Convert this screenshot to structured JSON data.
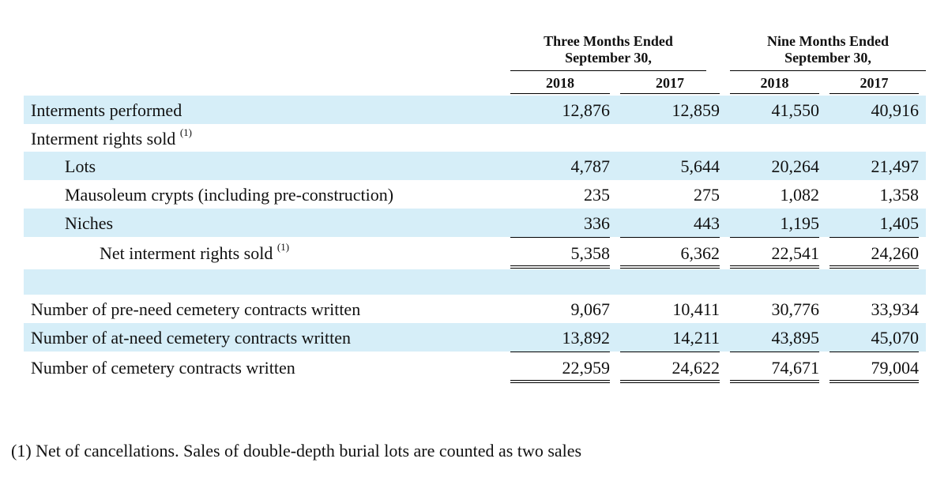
{
  "header": {
    "three_months": "Three Months Ended",
    "three_months_date": "September 30,",
    "nine_months": "Nine Months Ended",
    "nine_months_date": "September 30,",
    "years": [
      "2018",
      "2017",
      "2018",
      "2017"
    ]
  },
  "rows": [
    {
      "label": "Interments performed",
      "values": [
        "12,876",
        "12,859",
        "41,550",
        "40,916"
      ]
    },
    {
      "label": "Interment rights sold",
      "sup": "(1)",
      "values": [
        "",
        "",
        "",
        ""
      ]
    },
    {
      "label": "Lots",
      "values": [
        "4,787",
        "5,644",
        "20,264",
        "21,497"
      ]
    },
    {
      "label": "Mausoleum crypts (including pre-construction)",
      "values": [
        "235",
        "275",
        "1,082",
        "1,358"
      ]
    },
    {
      "label": "Niches",
      "values": [
        "336",
        "443",
        "1,195",
        "1,405"
      ]
    },
    {
      "label": "Net interment rights sold",
      "sup": "(1)",
      "values": [
        "5,358",
        "6,362",
        "22,541",
        "24,260"
      ]
    },
    {
      "label": "",
      "values": [
        "",
        "",
        "",
        ""
      ]
    },
    {
      "label": "Number of pre-need cemetery contracts written",
      "values": [
        "9,067",
        "10,411",
        "30,776",
        "33,934"
      ]
    },
    {
      "label": "Number of at-need cemetery contracts written",
      "values": [
        "13,892",
        "14,211",
        "43,895",
        "45,070"
      ]
    },
    {
      "label": "Number of cemetery contracts written",
      "values": [
        "22,959",
        "24,622",
        "74,671",
        "79,004"
      ]
    }
  ],
  "footnote": "(1)  Net of cancellations. Sales of double-depth burial lots are counted as two sales",
  "colors": {
    "shade": "#d6eef8"
  }
}
